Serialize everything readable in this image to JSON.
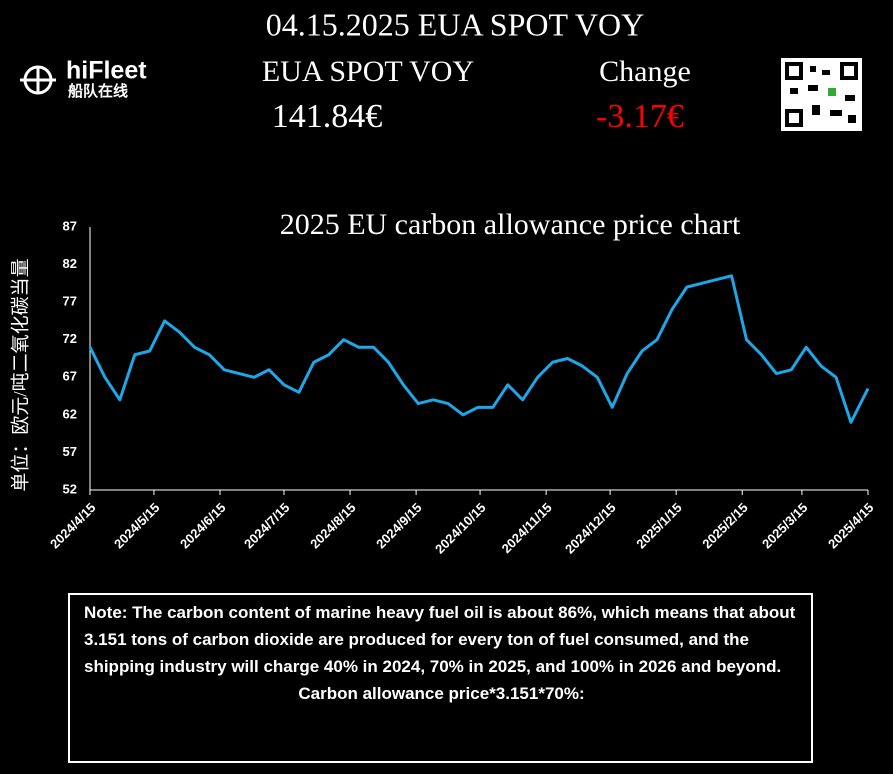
{
  "header": {
    "title": "04.15.2025 EUA SPOT VOY",
    "brand": "hiFleet",
    "brand_cn": "船队在线",
    "price_label": "EUA SPOT VOY",
    "price": "141.84€",
    "change_label": "Change",
    "change": "-3.17€"
  },
  "chart_data": {
    "type": "line",
    "title": "2025 EU carbon allowance price chart",
    "y_label": "单位：欧元/吨二氧化碳当量",
    "x": [
      "2024/4/15",
      "2024/4/22",
      "2024/4/29",
      "2024/5/6",
      "2024/5/13",
      "2024/5/20",
      "2024/5/27",
      "2024/6/3",
      "2024/6/10",
      "2024/6/17",
      "2024/6/24",
      "2024/7/1",
      "2024/7/8",
      "2024/7/15",
      "2024/7/22",
      "2024/7/29",
      "2024/8/5",
      "2024/8/12",
      "2024/8/19",
      "2024/8/26",
      "2024/9/2",
      "2024/9/9",
      "2024/9/16",
      "2024/9/23",
      "2024/9/30",
      "2024/10/7",
      "2024/10/14",
      "2024/10/21",
      "2024/10/28",
      "2024/11/4",
      "2024/11/11",
      "2024/11/18",
      "2024/11/25",
      "2024/12/2",
      "2024/12/9",
      "2024/12/16",
      "2024/12/23",
      "2024/12/30",
      "2025/1/6",
      "2025/1/13",
      "2025/1/20",
      "2025/1/27",
      "2025/2/3",
      "2025/2/10",
      "2025/2/17",
      "2025/2/24",
      "2025/3/3",
      "2025/3/10",
      "2025/3/17",
      "2025/3/24",
      "2025/3/31",
      "2025/4/7",
      "2025/4/15"
    ],
    "series": [
      {
        "name": "EUA",
        "color": "#1ea7e8",
        "values": [
          71,
          67,
          64,
          70,
          70.5,
          74.5,
          73,
          71,
          70,
          68,
          67.5,
          67,
          68,
          66,
          65,
          69,
          70,
          72,
          71,
          71,
          69,
          66,
          63.5,
          64,
          63.5,
          62,
          63,
          63,
          66,
          64,
          67,
          69,
          69.5,
          68.5,
          67,
          63,
          67.5,
          70.5,
          72,
          76,
          79,
          79.5,
          80,
          80.5,
          72,
          70,
          67.5,
          68,
          71,
          68.5,
          67,
          61,
          65.5
        ]
      }
    ],
    "xlim": [
      "2024/4/15",
      "2025/4/15"
    ],
    "xticks": [
      "2024/4/15",
      "2024/5/15",
      "2024/6/15",
      "2024/7/15",
      "2024/8/15",
      "2024/9/15",
      "2024/10/15",
      "2024/11/15",
      "2024/12/15",
      "2025/1/15",
      "2025/2/15",
      "2025/3/15",
      "2025/4/15"
    ],
    "ylim": [
      52,
      87
    ],
    "yticks": [
      52,
      57,
      62,
      67,
      72,
      77,
      82,
      87
    ]
  },
  "note": {
    "text": "Note: The carbon content of marine heavy fuel oil is about 86%, which means that about 3.151 tons of carbon dioxide are produced for every ton of fuel consumed, and the shipping industry will charge 40% in 2024, 70% in 2025, and 100% in 2026 and beyond.",
    "formula": "Carbon allowance price*3.151*70%:"
  }
}
